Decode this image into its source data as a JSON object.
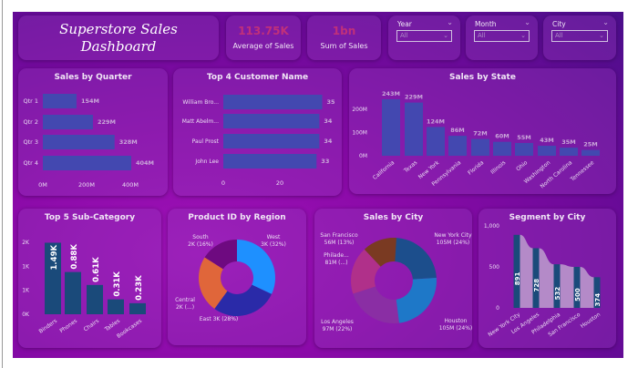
{
  "header": {
    "title_line1": "Superstore Sales",
    "title_line2": "Dashboard",
    "kpis": [
      {
        "value": "113.75K",
        "label": "Average of Sales"
      },
      {
        "value": "1bn",
        "label": "Sum of Sales"
      }
    ],
    "filters": [
      {
        "label": "Year",
        "value": "All"
      },
      {
        "label": "Month",
        "value": "All"
      },
      {
        "label": "City",
        "value": "All"
      }
    ]
  },
  "icons": {
    "filter_chevron": "chevron-down-icon"
  },
  "colors": {
    "bar": "#4348b0",
    "dark_bar": "#1a4a7a",
    "ribbon": "#b48ac8",
    "label": "#c9a6d9",
    "accent_kpi": "#c0307a"
  },
  "chart_data": [
    {
      "id": "quarter",
      "type": "bar",
      "orientation": "horizontal",
      "title": "Sales by Quarter",
      "categories": [
        "Qtr 1",
        "Qtr 2",
        "Qtr 3",
        "Qtr 4"
      ],
      "values": [
        154,
        229,
        328,
        404
      ],
      "value_labels": [
        "154M",
        "229M",
        "328M",
        "404M"
      ],
      "unit": "M",
      "xticks": [
        0,
        200,
        400
      ],
      "xtick_labels": [
        "0M",
        "200M",
        "400M"
      ]
    },
    {
      "id": "customer",
      "type": "bar",
      "orientation": "horizontal",
      "title": "Top 4 Customer Name",
      "categories": [
        "William Bro...",
        "Matt Abelm...",
        "Paul Prost",
        "John Lee"
      ],
      "values": [
        35,
        34,
        34,
        33
      ],
      "value_labels": [
        "35",
        "34",
        "34",
        "33"
      ],
      "xticks": [
        0,
        20
      ],
      "xtick_labels": [
        "0",
        "20"
      ]
    },
    {
      "id": "state",
      "type": "bar",
      "title": "Sales by State",
      "categories": [
        "California",
        "Texas",
        "New York",
        "Pennsylvania",
        "Florida",
        "Illinois",
        "Ohio",
        "Washington",
        "North Carolina",
        "Tennessee"
      ],
      "values": [
        243,
        229,
        124,
        86,
        72,
        60,
        55,
        43,
        35,
        25
      ],
      "value_labels": [
        "243M",
        "229M",
        "124M",
        "86M",
        "72M",
        "60M",
        "55M",
        "43M",
        "35M",
        "25M"
      ],
      "yticks": [
        0,
        100,
        200
      ],
      "ytick_labels": [
        "0M",
        "100M",
        "200M"
      ]
    },
    {
      "id": "subcat",
      "type": "bar",
      "title": "Top 5 Sub-Category",
      "categories": [
        "Binders",
        "Phones",
        "Chairs",
        "Tables",
        "Bookcases"
      ],
      "values": [
        1.49,
        0.88,
        0.61,
        0.31,
        0.23
      ],
      "value_labels": [
        "1.49K",
        "0.88K",
        "0.61K",
        "0.31K",
        "0.23K"
      ],
      "yticks": [
        0,
        0.5,
        1,
        1.5
      ],
      "ytick_labels": [
        "0K",
        "1K",
        "1K",
        "2K"
      ]
    },
    {
      "id": "region",
      "type": "pie",
      "donut": true,
      "title": "Product ID by Region",
      "slices": [
        {
          "name": "West",
          "share": 32,
          "label1": "West",
          "label2": "3K (32%)",
          "color": "#1e90ff"
        },
        {
          "name": "East",
          "share": 28,
          "label1": "East 3K (28%)",
          "label2": "",
          "color": "#2a2aa8"
        },
        {
          "name": "Central",
          "share": 24,
          "label1": "Central",
          "label2": "2K (...)",
          "color": "#e0663a"
        },
        {
          "name": "South",
          "share": 16,
          "label1": "South",
          "label2": "2K (16%)",
          "color": "#6e0a80"
        }
      ]
    },
    {
      "id": "city",
      "type": "pie",
      "donut": true,
      "title": "Sales by City",
      "slices": [
        {
          "name": "New York City",
          "share": 24,
          "label1": "New York City",
          "label2": "105M (24%)",
          "color": "#1c4e8c"
        },
        {
          "name": "Houston",
          "share": 24,
          "label1": "Houston",
          "label2": "105M (24%)",
          "color": "#1e78c8"
        },
        {
          "name": "Los Angeles",
          "share": 22,
          "label1": "Los Angeles",
          "label2": "97M (22%)",
          "color": "#8a2ea4"
        },
        {
          "name": "Philadelphia",
          "share": 18,
          "label1": "Philade...",
          "label2": "81M (...)",
          "color": "#b0308a"
        },
        {
          "name": "San Francisco",
          "share": 13,
          "label1": "San Francisco",
          "label2": "56M (13%)",
          "color": "#7a3a22"
        }
      ]
    },
    {
      "id": "segment",
      "type": "ribbon",
      "title": "Segment by City",
      "categories": [
        "New York City",
        "Los Angeles",
        "Philadelphia",
        "San Francisco",
        "Houston"
      ],
      "values": [
        891,
        728,
        532,
        500,
        374
      ],
      "value_labels": [
        "891",
        "728",
        "532",
        "500",
        "374"
      ],
      "yticks": [
        0,
        500,
        1000
      ],
      "ytick_labels": [
        "0",
        "500",
        "1,000"
      ]
    }
  ]
}
